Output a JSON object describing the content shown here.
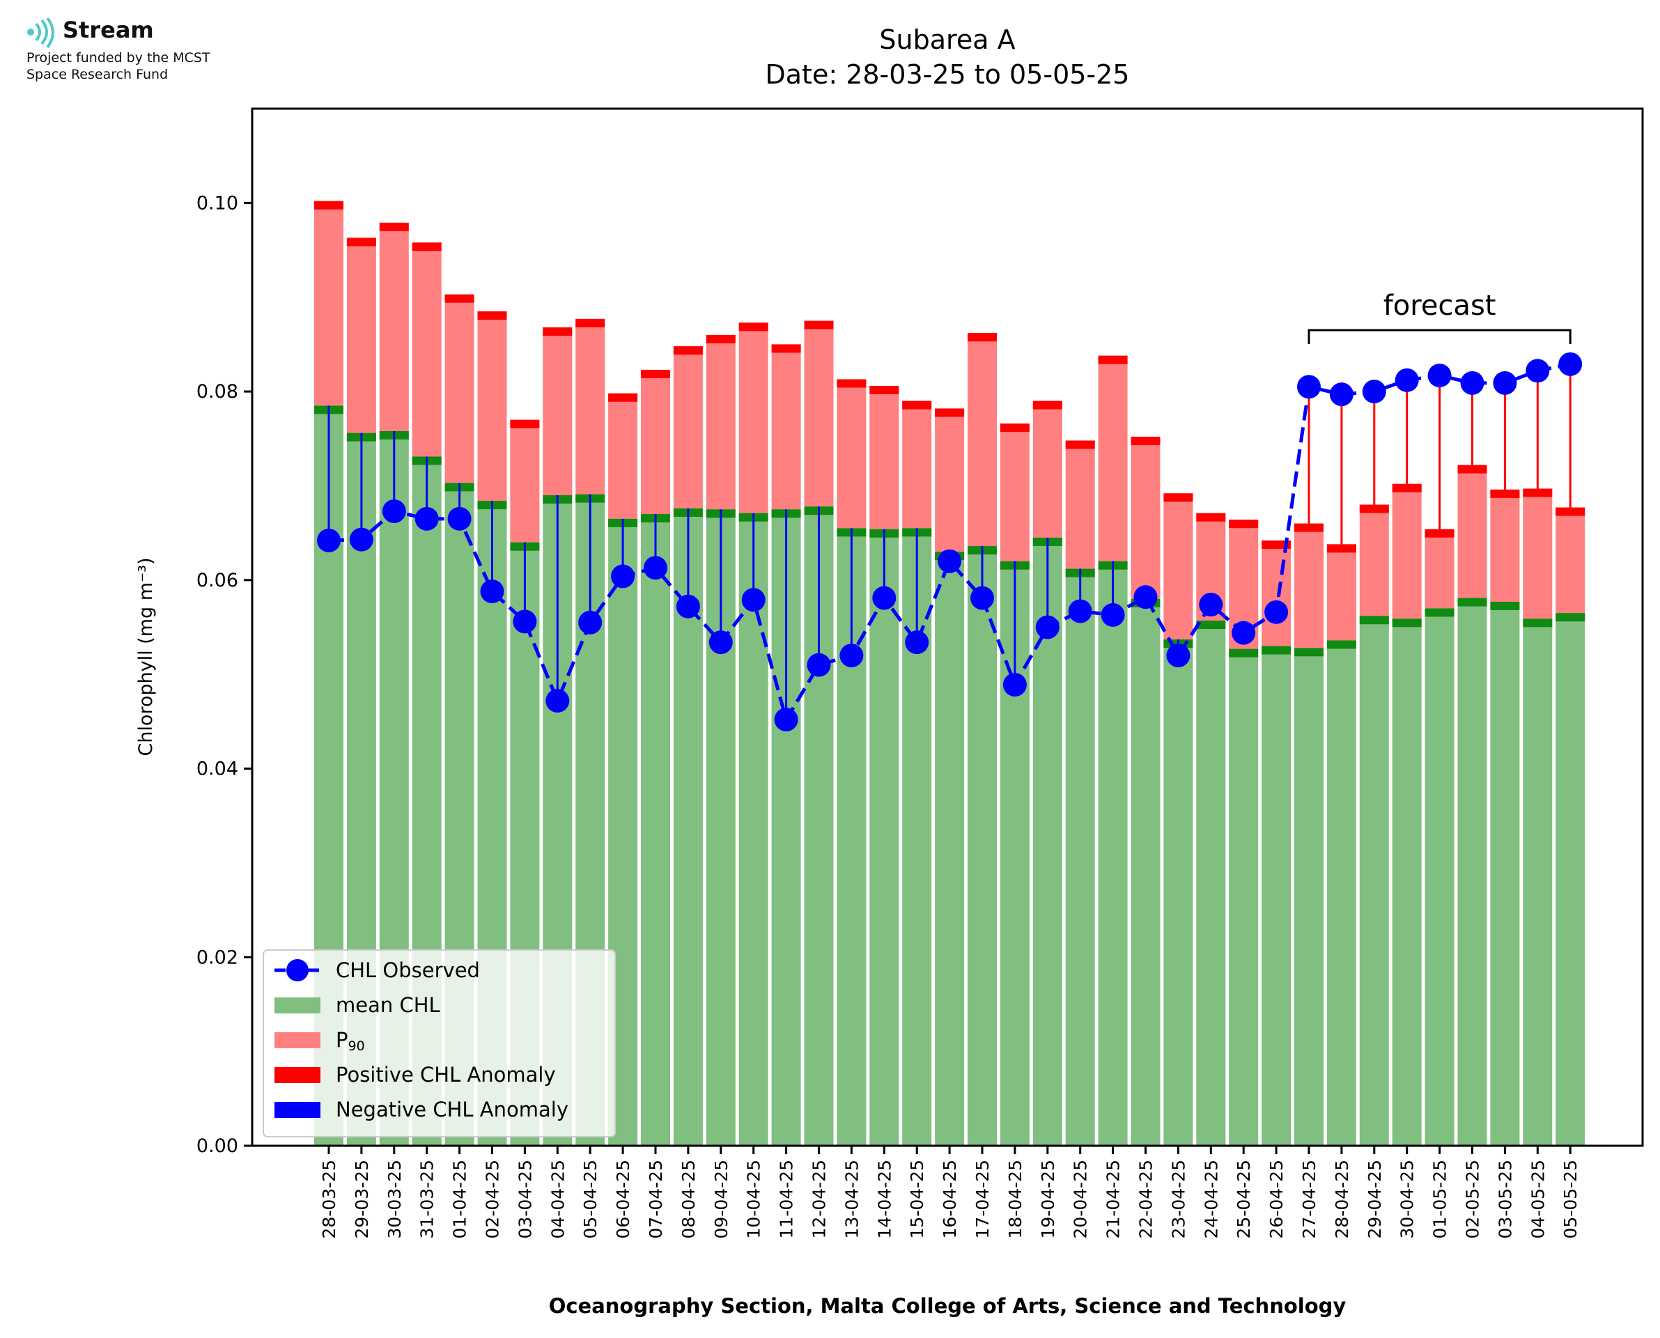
{
  "logo": {
    "name": "Stream",
    "line1": "Project funded by the MCST",
    "line2": "Space Research Fund",
    "color": "#4fc7c7"
  },
  "colors": {
    "mean": "#80bf80",
    "mean_cap": "#108a10",
    "p90": "#ff8080",
    "p90_cap": "#ff0000",
    "observed": "#0000ff",
    "positive_anomaly": "#ff0000",
    "negative_anomaly": "#0000ff"
  },
  "chart_data": {
    "type": "bar",
    "title": "Subarea A",
    "subtitle": "Date: 28-03-25 to 05-05-25",
    "xlabel": "Oceanography Section, Malta College of Arts, Science and Technology",
    "ylabel": "Chlorophyll (mg m⁻³)",
    "ylim": [
      0,
      0.11
    ],
    "yticks": [
      "0.00",
      "0.02",
      "0.04",
      "0.06",
      "0.08",
      "0.10"
    ],
    "annotation": "forecast",
    "forecast_start_index": 30,
    "categories": [
      "28-03-25",
      "29-03-25",
      "30-03-25",
      "31-03-25",
      "01-04-25",
      "02-04-25",
      "03-04-25",
      "04-04-25",
      "05-04-25",
      "06-04-25",
      "07-04-25",
      "08-04-25",
      "09-04-25",
      "10-04-25",
      "11-04-25",
      "12-04-25",
      "13-04-25",
      "14-04-25",
      "15-04-25",
      "16-04-25",
      "17-04-25",
      "18-04-25",
      "19-04-25",
      "20-04-25",
      "21-04-25",
      "22-04-25",
      "23-04-25",
      "24-04-25",
      "25-04-25",
      "26-04-25",
      "27-04-25",
      "28-04-25",
      "29-04-25",
      "30-04-25",
      "01-05-25",
      "02-05-25",
      "03-05-25",
      "04-05-25",
      "05-05-25"
    ],
    "legend": [
      {
        "key": "observed",
        "label": "CHL Observed"
      },
      {
        "key": "mean",
        "label": "mean CHL"
      },
      {
        "key": "p90",
        "label": "P",
        "sub": "90"
      },
      {
        "key": "positive_anomaly",
        "label": "Positive CHL Anomaly"
      },
      {
        "key": "negative_anomaly",
        "label": "Negative CHL Anomaly"
      }
    ],
    "series": [
      {
        "name": "mean CHL",
        "values": [
          0.0785,
          0.0756,
          0.0758,
          0.0731,
          0.0703,
          0.0684,
          0.064,
          0.069,
          0.0691,
          0.0665,
          0.067,
          0.0676,
          0.0675,
          0.0671,
          0.0675,
          0.0678,
          0.0655,
          0.0654,
          0.0655,
          0.063,
          0.0636,
          0.062,
          0.0645,
          0.0612,
          0.062,
          0.058,
          0.0537,
          0.0557,
          0.0527,
          0.053,
          0.0528,
          0.0536,
          0.0562,
          0.0559,
          0.057,
          0.0581,
          0.0577,
          0.0559,
          0.0565
        ]
      },
      {
        "name": "P90",
        "values": [
          0.1002,
          0.0963,
          0.0979,
          0.0958,
          0.0903,
          0.0885,
          0.077,
          0.0868,
          0.0877,
          0.0798,
          0.0823,
          0.0848,
          0.086,
          0.0873,
          0.085,
          0.0875,
          0.0813,
          0.0806,
          0.079,
          0.0782,
          0.0862,
          0.0766,
          0.079,
          0.0748,
          0.0838,
          0.0752,
          0.0692,
          0.0671,
          0.0664,
          0.0642,
          0.066,
          0.0638,
          0.068,
          0.0702,
          0.0654,
          0.0722,
          0.0696,
          0.0697,
          0.0677
        ]
      },
      {
        "name": "CHL Observed",
        "values": [
          0.0642,
          0.0643,
          0.0673,
          0.0665,
          0.0665,
          0.0588,
          0.0556,
          0.0472,
          0.0555,
          0.0604,
          0.0613,
          0.0572,
          0.0534,
          0.0579,
          0.0452,
          0.051,
          0.052,
          0.0581,
          0.0534,
          0.062,
          0.0581,
          0.0489,
          0.055,
          0.0567,
          0.0563,
          0.0582,
          0.052,
          0.0574,
          0.0544,
          0.0566,
          0.0805,
          0.0797,
          0.08,
          0.0812,
          0.0817,
          0.0809,
          0.0809,
          0.0822,
          0.0829
        ]
      }
    ]
  }
}
